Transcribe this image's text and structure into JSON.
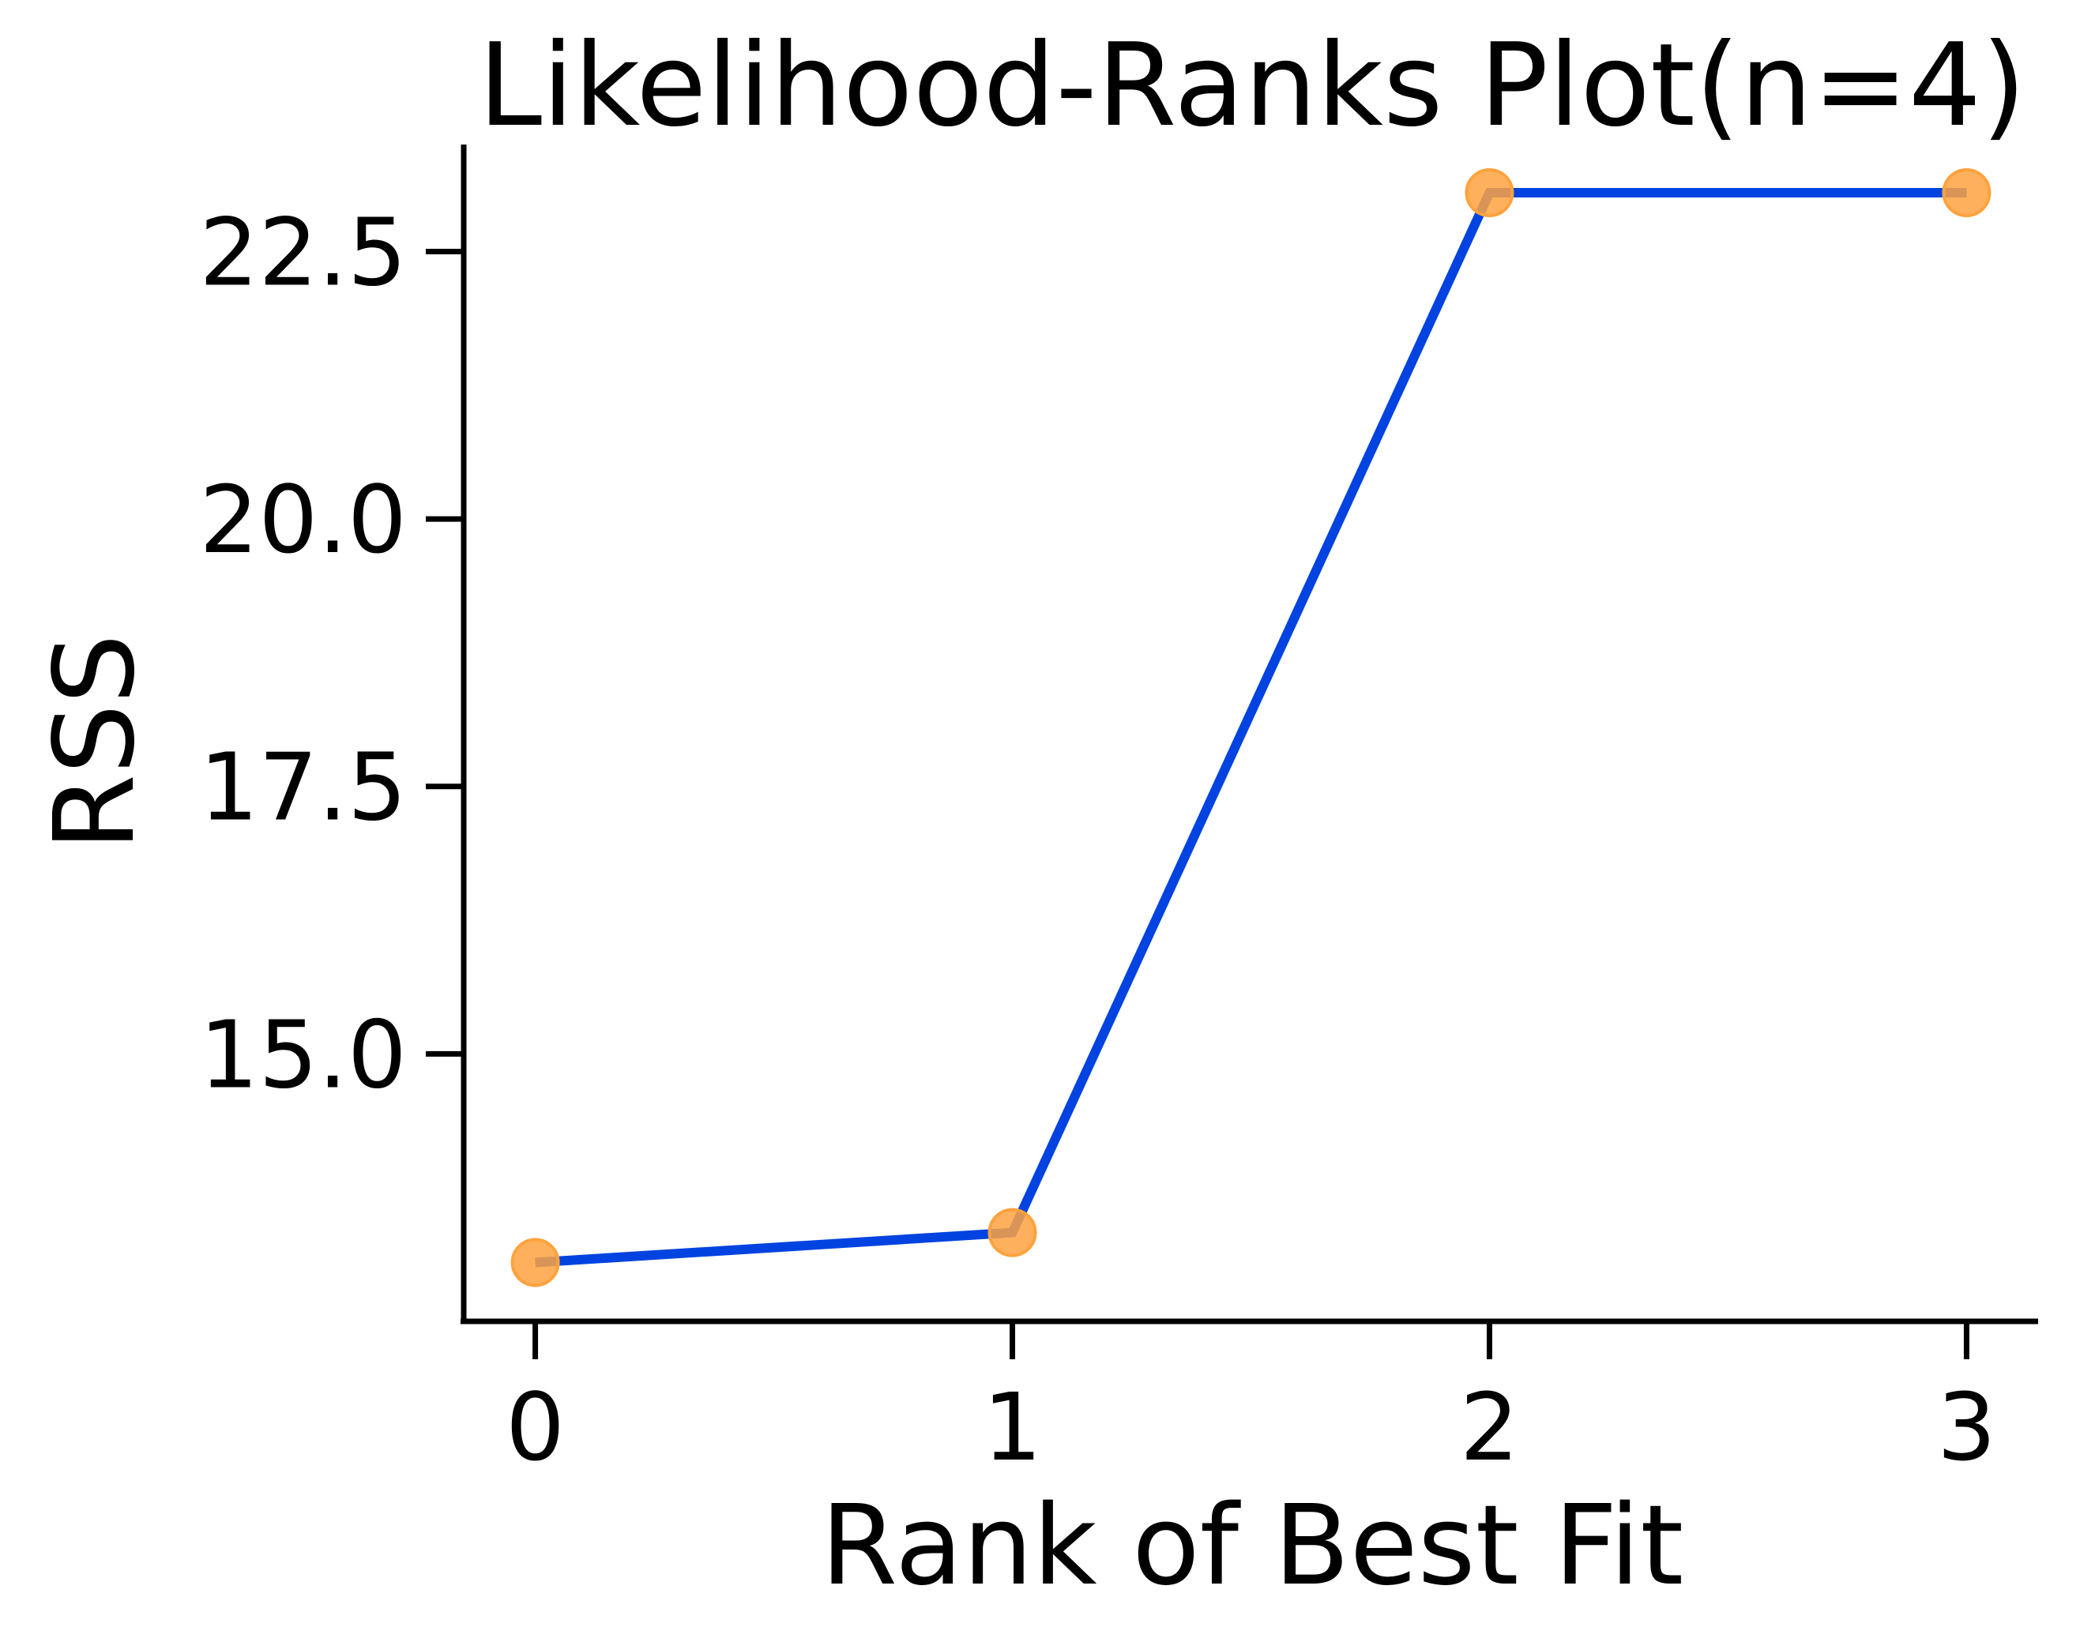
{
  "chart_data": {
    "type": "line",
    "title": "Likelihood-Ranks Plot(n=4)",
    "xlabel": "Rank of Best Fit",
    "ylabel": "RSS",
    "x": [
      0,
      1,
      2,
      3
    ],
    "xticks": [
      "0",
      "1",
      "2",
      "3"
    ],
    "yticks": [
      {
        "value": 15.0,
        "label": "15.0"
      },
      {
        "value": 17.5,
        "label": "17.5"
      },
      {
        "value": 20.0,
        "label": "20.0"
      },
      {
        "value": 22.5,
        "label": "22.5"
      }
    ],
    "xlim": [
      -0.15,
      3.15
    ],
    "ylim": [
      12.5,
      23.5
    ],
    "grid": false,
    "legend": "none",
    "series": [
      {
        "values": [
          13.05,
          13.33,
          23.05,
          23.05
        ],
        "line_color": "#0043e0",
        "marker_color": "#ffa23f"
      }
    ]
  }
}
